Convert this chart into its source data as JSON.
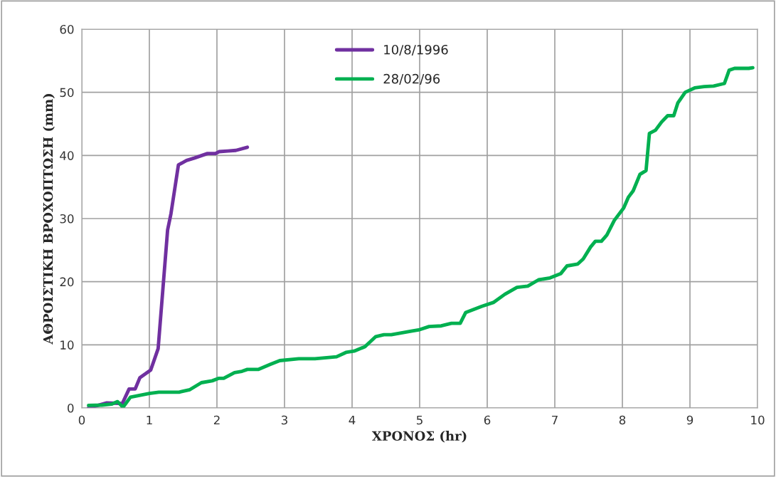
{
  "chart_data": {
    "type": "line",
    "xlabel": "ΧΡΟΝΟΣ (hr)",
    "ylabel": "ΑΘΡΟΙΣΤΙΚΗ ΒΡΟΧΟΠΤΩΣΗ (mm)",
    "xlim": [
      0,
      10
    ],
    "xticks": [
      0,
      1,
      2,
      3,
      4,
      5,
      6,
      7,
      8,
      9,
      10
    ],
    "ylim": [
      0,
      60
    ],
    "yticks": [
      0,
      10,
      20,
      30,
      40,
      50,
      60
    ],
    "grid": true,
    "legend": "top",
    "marker": "none",
    "line_style": "solid",
    "series": [
      {
        "name": "10/8/1996",
        "color": "#7030a0",
        "x": [
          0.1,
          0.37,
          0.6,
          0.7,
          0.79,
          0.86,
          1.02,
          1.13,
          1.27,
          1.32,
          1.43,
          1.55,
          1.67,
          1.86,
          1.98,
          2.03,
          2.16,
          2.28,
          2.45
        ],
        "values": [
          0,
          0.8,
          0.7,
          3.0,
          3.0,
          4.8,
          6.0,
          9.4,
          28.2,
          30.8,
          38.5,
          39.2,
          39.6,
          40.3,
          40.3,
          40.6,
          40.7,
          40.8,
          41.3
        ]
      },
      {
        "name": "28/02/96",
        "color": "#00b050",
        "x": [
          0.1,
          0.3,
          0.44,
          0.53,
          0.61,
          0.72,
          1.0,
          1.14,
          1.44,
          1.6,
          1.77,
          1.93,
          2.03,
          2.1,
          2.26,
          2.37,
          2.45,
          2.61,
          2.79,
          2.93,
          3.21,
          3.45,
          3.77,
          3.91,
          4.03,
          4.19,
          4.35,
          4.47,
          4.58,
          4.89,
          5.0,
          5.14,
          5.32,
          5.47,
          5.6,
          5.68,
          5.92,
          6.09,
          6.26,
          6.44,
          6.6,
          6.76,
          6.93,
          7.09,
          7.18,
          7.34,
          7.42,
          7.53,
          7.6,
          7.69,
          7.77,
          7.88,
          8.02,
          8.09,
          8.16,
          8.26,
          8.35,
          8.4,
          8.49,
          8.58,
          8.67,
          8.76,
          8.82,
          8.93,
          9.07,
          9.21,
          9.35,
          9.51,
          9.58,
          9.66,
          9.87,
          9.93
        ],
        "values": [
          0.4,
          0.45,
          0.6,
          1.0,
          0.1,
          1.7,
          2.3,
          2.5,
          2.5,
          2.9,
          4.0,
          4.3,
          4.7,
          4.7,
          5.6,
          5.8,
          6.1,
          6.1,
          6.9,
          7.5,
          7.8,
          7.8,
          8.1,
          8.8,
          9.0,
          9.7,
          11.3,
          11.6,
          11.6,
          12.2,
          12.4,
          12.9,
          13.0,
          13.4,
          13.4,
          15.1,
          16.1,
          16.7,
          18.0,
          19.1,
          19.3,
          20.3,
          20.6,
          21.3,
          22.5,
          22.8,
          23.6,
          25.5,
          26.4,
          26.4,
          27.4,
          29.7,
          31.7,
          33.4,
          34.4,
          37.0,
          37.6,
          43.5,
          44.0,
          45.3,
          46.3,
          46.3,
          48.3,
          50.0,
          50.7,
          50.9,
          51.0,
          51.4,
          53.5,
          53.8,
          53.8,
          53.9
        ]
      }
    ]
  }
}
